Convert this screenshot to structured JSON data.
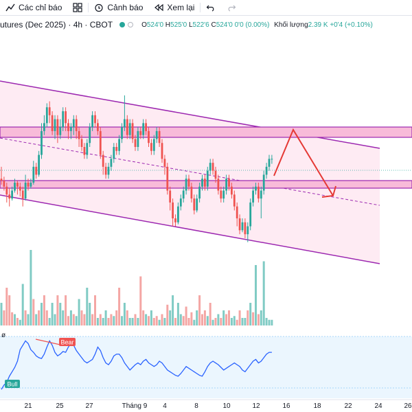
{
  "toolbar": {
    "indicators_label": "Các chỉ báo",
    "alerts_label": "Cảnh báo",
    "replay_label": "Xem lại"
  },
  "header": {
    "symbol": "utures (Dec 2025) · 4h · CBOT",
    "open_label": "O",
    "open_value": "524'0",
    "high_label": "H",
    "high_value": "525'0",
    "low_label": "L",
    "low_value": "522'6",
    "close_label": "C",
    "close_value": "524'0",
    "change_value": "0'0 (0.00%)",
    "volume_label": "Khối lượng",
    "volume_value": "2.39 K",
    "volume_change": "+0'4 (+0.10%)"
  },
  "indicator_pane": {
    "label": "ø",
    "bear_label": "Bear",
    "bull_label": "Bull"
  },
  "colors": {
    "up": "#26a69a",
    "down": "#ef5350",
    "channel": "#9c27b0",
    "zone_fill": "#f8bbd9",
    "arrow": "#e53935",
    "rsi": "#2962ff"
  },
  "chart_data": {
    "type": "candlestick",
    "x_ticks": [
      "21",
      "25",
      "27",
      "Tháng 9",
      "4",
      "8",
      "10",
      "12",
      "16",
      "18",
      "22",
      "24",
      "26"
    ],
    "candles": [
      [
        519,
        518.5,
        522,
        517.5
      ],
      [
        518.5,
        517,
        519.5,
        516
      ],
      [
        517,
        515,
        518,
        513
      ],
      [
        515,
        514,
        516.5,
        512
      ],
      [
        514,
        516,
        517,
        513.5
      ],
      [
        516,
        518,
        519,
        515.5
      ],
      [
        518,
        517,
        518.5,
        515
      ],
      [
        517,
        516,
        518,
        514.5
      ],
      [
        516,
        514,
        517,
        512
      ],
      [
        514,
        518,
        520,
        513.5
      ],
      [
        518,
        517,
        519,
        516
      ],
      [
        517,
        518,
        519,
        516.5
      ],
      [
        518,
        522,
        523.5,
        517.5
      ],
      [
        522,
        520,
        523,
        519
      ],
      [
        520,
        525,
        526,
        519.5
      ],
      [
        525,
        531,
        533,
        524
      ],
      [
        531,
        533,
        535,
        530
      ],
      [
        533,
        537,
        538,
        532
      ],
      [
        537,
        535,
        538.5,
        533
      ],
      [
        535,
        531,
        536,
        530
      ],
      [
        531,
        534,
        535,
        529
      ],
      [
        534,
        530,
        535,
        528
      ],
      [
        530,
        532,
        534,
        529
      ],
      [
        532,
        536,
        537,
        531
      ],
      [
        536,
        533,
        537,
        531
      ],
      [
        533,
        531,
        534,
        529
      ],
      [
        531,
        532,
        533,
        529
      ],
      [
        532,
        534,
        535,
        530
      ],
      [
        534,
        531,
        535,
        529
      ],
      [
        531,
        529,
        532,
        527
      ],
      [
        529,
        527,
        530,
        526
      ],
      [
        527,
        525,
        528,
        524
      ],
      [
        525,
        528,
        529,
        524
      ],
      [
        528,
        532,
        533,
        527
      ],
      [
        532,
        535,
        536,
        531
      ],
      [
        535,
        533,
        536,
        532
      ],
      [
        533,
        531,
        534,
        530
      ],
      [
        531,
        525,
        532,
        524
      ],
      [
        525,
        522,
        526,
        520
      ],
      [
        522,
        520,
        523,
        519
      ],
      [
        520,
        522,
        523,
        519
      ],
      [
        522,
        524,
        525,
        521
      ],
      [
        524,
        527,
        528,
        523
      ],
      [
        527,
        526,
        528,
        525
      ],
      [
        526,
        529,
        530,
        525
      ],
      [
        529,
        532,
        533,
        528
      ],
      [
        532,
        534,
        540,
        531
      ],
      [
        534,
        530,
        535,
        529
      ],
      [
        530,
        533,
        534,
        529
      ],
      [
        533,
        529,
        534,
        528
      ],
      [
        529,
        527,
        530,
        526
      ],
      [
        527,
        531,
        532,
        526
      ],
      [
        531,
        530,
        532,
        529
      ],
      [
        530,
        533,
        534,
        529
      ],
      [
        533,
        531,
        534,
        530
      ],
      [
        531,
        528,
        532,
        527
      ],
      [
        528,
        526,
        529,
        525
      ],
      [
        526,
        529,
        530,
        525
      ],
      [
        529,
        531,
        532,
        528
      ],
      [
        531,
        528,
        532,
        527
      ],
      [
        528,
        524,
        529,
        523
      ],
      [
        524,
        522,
        525,
        520
      ],
      [
        522,
        516,
        523,
        515
      ],
      [
        516,
        513,
        517,
        511
      ],
      [
        513,
        509,
        514,
        507
      ],
      [
        509,
        508,
        510,
        507
      ],
      [
        508,
        512,
        513,
        507.5
      ],
      [
        512,
        514,
        515,
        511
      ],
      [
        514,
        516,
        517,
        513
      ],
      [
        516,
        519,
        520,
        515
      ],
      [
        519,
        517,
        520,
        516
      ],
      [
        517,
        514,
        518,
        513
      ],
      [
        514,
        511,
        515,
        510
      ],
      [
        511,
        514,
        515,
        510.5
      ],
      [
        514,
        517,
        518,
        513
      ],
      [
        517,
        519,
        520,
        516
      ],
      [
        519,
        517,
        520,
        516
      ],
      [
        517,
        521,
        522,
        516
      ],
      [
        521,
        523,
        524,
        520
      ],
      [
        523,
        521,
        524,
        520
      ],
      [
        521,
        519,
        522,
        518
      ],
      [
        519,
        516,
        520,
        515
      ],
      [
        516,
        514,
        517,
        513
      ],
      [
        514,
        516,
        517,
        513
      ],
      [
        516,
        519,
        520,
        515
      ],
      [
        519,
        517,
        520,
        516
      ],
      [
        517,
        515,
        518,
        514
      ],
      [
        515,
        512,
        516,
        511
      ],
      [
        512,
        509,
        513,
        507
      ],
      [
        509,
        506,
        510,
        505
      ],
      [
        506,
        508,
        509,
        505.5
      ],
      [
        508,
        505,
        509,
        504
      ],
      [
        505,
        507,
        508,
        503
      ],
      [
        507,
        513,
        514,
        506
      ],
      [
        513,
        516,
        517,
        512
      ],
      [
        516,
        517,
        518,
        515
      ],
      [
        517,
        514,
        518,
        513
      ],
      [
        514,
        516,
        517,
        509
      ],
      [
        516,
        520,
        521,
        515
      ],
      [
        520,
        522,
        523,
        519
      ],
      [
        522,
        524,
        525,
        521
      ],
      [
        524,
        524,
        525,
        522.75
      ]
    ],
    "volumes": [
      [
        60,
        "u"
      ],
      [
        40,
        "d"
      ],
      [
        100,
        "d"
      ],
      [
        80,
        "d"
      ],
      [
        35,
        "d"
      ],
      [
        30,
        "u"
      ],
      [
        20,
        "d"
      ],
      [
        15,
        "u"
      ],
      [
        110,
        "u"
      ],
      [
        40,
        "d"
      ],
      [
        30,
        "u"
      ],
      [
        200,
        "u"
      ],
      [
        70,
        "d"
      ],
      [
        30,
        "u"
      ],
      [
        40,
        "d"
      ],
      [
        60,
        "u"
      ],
      [
        80,
        "d"
      ],
      [
        40,
        "d"
      ],
      [
        20,
        "u"
      ],
      [
        60,
        "u"
      ],
      [
        30,
        "u"
      ],
      [
        80,
        "d"
      ],
      [
        60,
        "u"
      ],
      [
        40,
        "u"
      ],
      [
        80,
        "d"
      ],
      [
        25,
        "d"
      ],
      [
        40,
        "u"
      ],
      [
        30,
        "d"
      ],
      [
        25,
        "u"
      ],
      [
        70,
        "u"
      ],
      [
        40,
        "d"
      ],
      [
        30,
        "d"
      ],
      [
        100,
        "u"
      ],
      [
        60,
        "u"
      ],
      [
        30,
        "d"
      ],
      [
        80,
        "d"
      ],
      [
        20,
        "u"
      ],
      [
        30,
        "d"
      ],
      [
        20,
        "u"
      ],
      [
        40,
        "u"
      ],
      [
        20,
        "d"
      ],
      [
        30,
        "d"
      ],
      [
        25,
        "u"
      ],
      [
        40,
        "d"
      ],
      [
        100,
        "d"
      ],
      [
        25,
        "u"
      ],
      [
        60,
        "u"
      ],
      [
        40,
        "d"
      ],
      [
        20,
        "u"
      ],
      [
        20,
        "u"
      ],
      [
        30,
        "d"
      ],
      [
        20,
        "u"
      ],
      [
        130,
        "d"
      ],
      [
        40,
        "d"
      ],
      [
        30,
        "u"
      ],
      [
        25,
        "d"
      ],
      [
        40,
        "u"
      ],
      [
        20,
        "d"
      ],
      [
        25,
        "d"
      ],
      [
        15,
        "u"
      ],
      [
        30,
        "d"
      ],
      [
        20,
        "u"
      ],
      [
        55,
        "d"
      ],
      [
        40,
        "u"
      ],
      [
        80,
        "u"
      ],
      [
        20,
        "d"
      ],
      [
        60,
        "u"
      ],
      [
        30,
        "u"
      ],
      [
        25,
        "d"
      ],
      [
        50,
        "d"
      ],
      [
        20,
        "d"
      ],
      [
        35,
        "d"
      ],
      [
        15,
        "u"
      ],
      [
        40,
        "u"
      ],
      [
        80,
        "d"
      ],
      [
        30,
        "d"
      ],
      [
        40,
        "d"
      ],
      [
        25,
        "u"
      ],
      [
        60,
        "d"
      ],
      [
        15,
        "u"
      ],
      [
        20,
        "d"
      ],
      [
        30,
        "u"
      ],
      [
        20,
        "d"
      ],
      [
        40,
        "u"
      ],
      [
        30,
        "d"
      ],
      [
        40,
        "d"
      ],
      [
        20,
        "u"
      ],
      [
        25,
        "u"
      ],
      [
        15,
        "d"
      ],
      [
        40,
        "d"
      ],
      [
        20,
        "u"
      ],
      [
        20,
        "u"
      ],
      [
        40,
        "d"
      ],
      [
        60,
        "u"
      ],
      [
        35,
        "d"
      ],
      [
        160,
        "u"
      ],
      [
        30,
        "d"
      ],
      [
        40,
        "u"
      ],
      [
        170,
        "u"
      ],
      [
        20,
        "u"
      ],
      [
        15,
        "u"
      ],
      [
        15,
        "u"
      ]
    ],
    "rsi": [
      30,
      35,
      38,
      45,
      50,
      55,
      62,
      75,
      80,
      85,
      82,
      75,
      72,
      68,
      66,
      65,
      70,
      78,
      85,
      80,
      72,
      68,
      70,
      73,
      72,
      78,
      82,
      80,
      74,
      70,
      66,
      62,
      60,
      62,
      64,
      70,
      78,
      74,
      66,
      60,
      58,
      62,
      68,
      70,
      70,
      66,
      60,
      56,
      52,
      55,
      58,
      60,
      58,
      62,
      64,
      60,
      58,
      56,
      58,
      62,
      60,
      56,
      52,
      50,
      48,
      46,
      45,
      48,
      52,
      56,
      54,
      52,
      50,
      48,
      46,
      45,
      50,
      56,
      60,
      62,
      60,
      58,
      55,
      52,
      54,
      56,
      58,
      60,
      58,
      56,
      52,
      50,
      54,
      58,
      62,
      64,
      60,
      62,
      66,
      70,
      72,
      72
    ],
    "annotations": [
      "Bear",
      "Bull"
    ]
  }
}
